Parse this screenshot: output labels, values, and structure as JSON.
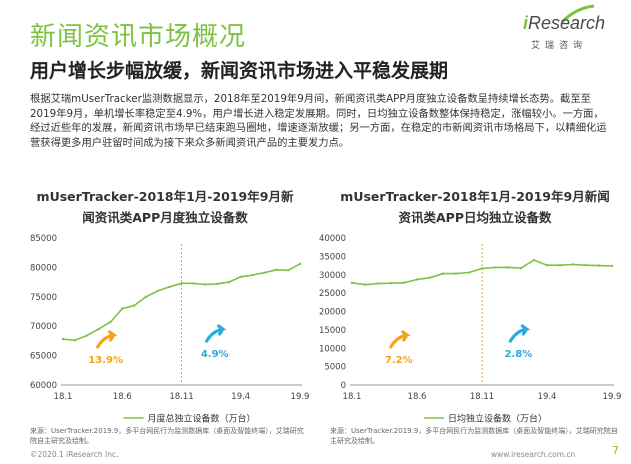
{
  "header": {
    "title": "新闻资讯市场概况",
    "subtitle": "用户增长步幅放缓，新闻资讯市场进入平稳发展期",
    "logo_text_i": "i",
    "logo_text_rest": "Research",
    "logo_sub": "艾瑞咨询"
  },
  "body": {
    "paragraph": "根据艾瑞mUserTracker监测数据显示，2018年至2019年9月间，新闻资讯类APP月度独立设备数呈持续增长态势。截至至2019年9月，单机增长率稳定至4.9%，用户增长进入稳定发展期。同时，日均独立设备数整体保持稳定，涨幅较小。一方面，经过近些年的发展，新闻资讯市场早已结束跑马圈地，增速逐渐放缓；另一方面，在稳定的市新闻资讯市场格局下，以精细化运营获得更多用户驻留时间成为接下来众多新闻资讯产品的主要发力点。"
  },
  "colors": {
    "accent": "#7dc242",
    "orange": "#f7a21b",
    "blue": "#29abe2",
    "divider": "#e0a040"
  },
  "chart_data": [
    {
      "type": "line",
      "title": "mUserTracker-2018年1月-2019年9月新闻资讯类APP月度独立设备数",
      "title_lines": [
        "mUserTracker-2018年1月-2019年9月新",
        "闻资讯类APP月度独立设备数"
      ],
      "x_tick_labels": [
        "18.1",
        "18.6",
        "18.11",
        "19.4",
        "19.9"
      ],
      "ylim": [
        60000,
        85000
      ],
      "y_ticks": [
        60000,
        65000,
        70000,
        75000,
        80000,
        85000
      ],
      "y_tick_labels": [
        "60000",
        "65000",
        "70000",
        "75000",
        "80000",
        "85000"
      ],
      "series": [
        {
          "name": "月度总独立设备数（万台）",
          "x": [
            "18.1",
            "18.2",
            "18.3",
            "18.4",
            "18.5",
            "18.6",
            "18.7",
            "18.8",
            "18.9",
            "18.10",
            "18.11",
            "18.12",
            "19.1",
            "19.2",
            "19.3",
            "19.4",
            "19.5",
            "19.6",
            "19.7",
            "19.8",
            "19.9"
          ],
          "values": [
            67800,
            67600,
            68400,
            69500,
            70700,
            73000,
            73500,
            75000,
            76000,
            76700,
            77300,
            77300,
            77100,
            77200,
            77500,
            78400,
            78700,
            79100,
            79600,
            79500,
            80600
          ]
        }
      ],
      "annotations": [
        {
          "text": "13.9%",
          "color": "orange"
        },
        {
          "text": "4.9%",
          "color": "blue"
        }
      ],
      "divider_x": "18.11",
      "source": "来源：UserTracker.2019.9，多平台网民行为监测数据库（桌面及智能终端），艾瑞研究院自主研究及绘制。"
    },
    {
      "type": "line",
      "title": "mUserTracker-2018年1月-2019年9月新闻资讯类APP日均独立设备数",
      "title_lines": [
        "mUserTracker-2018年1月-2019年9月新闻",
        "资讯类APP日均独立设备数"
      ],
      "x_tick_labels": [
        "18.1",
        "18.6",
        "18.11",
        "19.4",
        "19.9"
      ],
      "ylim": [
        0,
        40000
      ],
      "y_ticks": [
        0,
        5000,
        10000,
        15000,
        20000,
        25000,
        30000,
        35000,
        40000
      ],
      "y_tick_labels": [
        "0",
        "5000",
        "10000",
        "15000",
        "20000",
        "25000",
        "30000",
        "35000",
        "40000"
      ],
      "series": [
        {
          "name": "日均独立设备数（万台）",
          "x": [
            "18.1",
            "18.2",
            "18.3",
            "18.4",
            "18.5",
            "18.6",
            "18.7",
            "18.8",
            "18.9",
            "18.10",
            "18.11",
            "18.12",
            "19.1",
            "19.2",
            "19.3",
            "19.4",
            "19.5",
            "19.6",
            "19.7",
            "19.8",
            "19.9"
          ],
          "values": [
            27800,
            27300,
            27600,
            27700,
            27800,
            28700,
            29200,
            30300,
            30300,
            30600,
            31700,
            32000,
            32000,
            31800,
            34000,
            32600,
            32600,
            32800,
            32600,
            32500,
            32400
          ]
        }
      ],
      "annotations": [
        {
          "text": "7.2%",
          "color": "orange"
        },
        {
          "text": "2.8%",
          "color": "blue"
        }
      ],
      "divider_x": "18.11",
      "source": "来源：UserTracker.2019.9，多平台网民行为监测数据库（桌面及智能终端），艾瑞研究院自主研究及绘制。"
    }
  ],
  "footer": {
    "copyright": "©2020.1 iResearch Inc.",
    "url": "www.iresearch.com.cn",
    "page": "7"
  }
}
